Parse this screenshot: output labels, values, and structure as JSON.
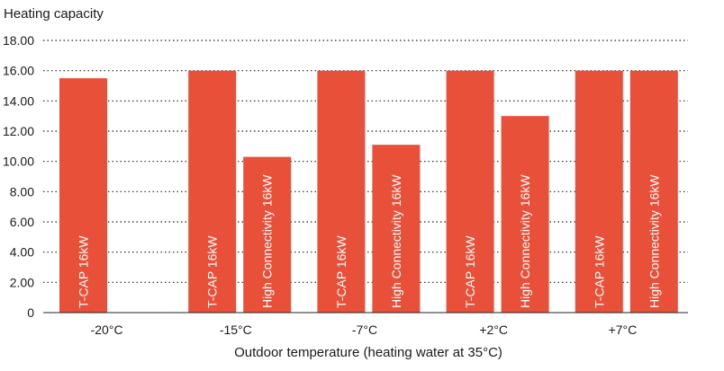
{
  "chart_data": {
    "type": "bar",
    "ylabel": "Heating capacity",
    "xlabel": "Outdoor temperature (heating water at 35°C)",
    "ylim": [
      0,
      18
    ],
    "yticks": [
      "0",
      "2.00",
      "4.00",
      "6.00",
      "8.00",
      "10.00",
      "12.00",
      "14.00",
      "16.00",
      "18.00"
    ],
    "grid": true,
    "legend": "none",
    "categories": [
      "-20°C",
      "-15°C",
      "-7°C",
      "+2°C",
      "+7°C"
    ],
    "series": [
      {
        "name": "T-CAP 16kW",
        "values": [
          15.5,
          16.0,
          16.0,
          16.0,
          16.0
        ]
      },
      {
        "name": "High Connectivity 16kW",
        "values": [
          null,
          10.3,
          11.1,
          13.0,
          16.0
        ]
      }
    ],
    "bar_color": "#e8503a"
  }
}
